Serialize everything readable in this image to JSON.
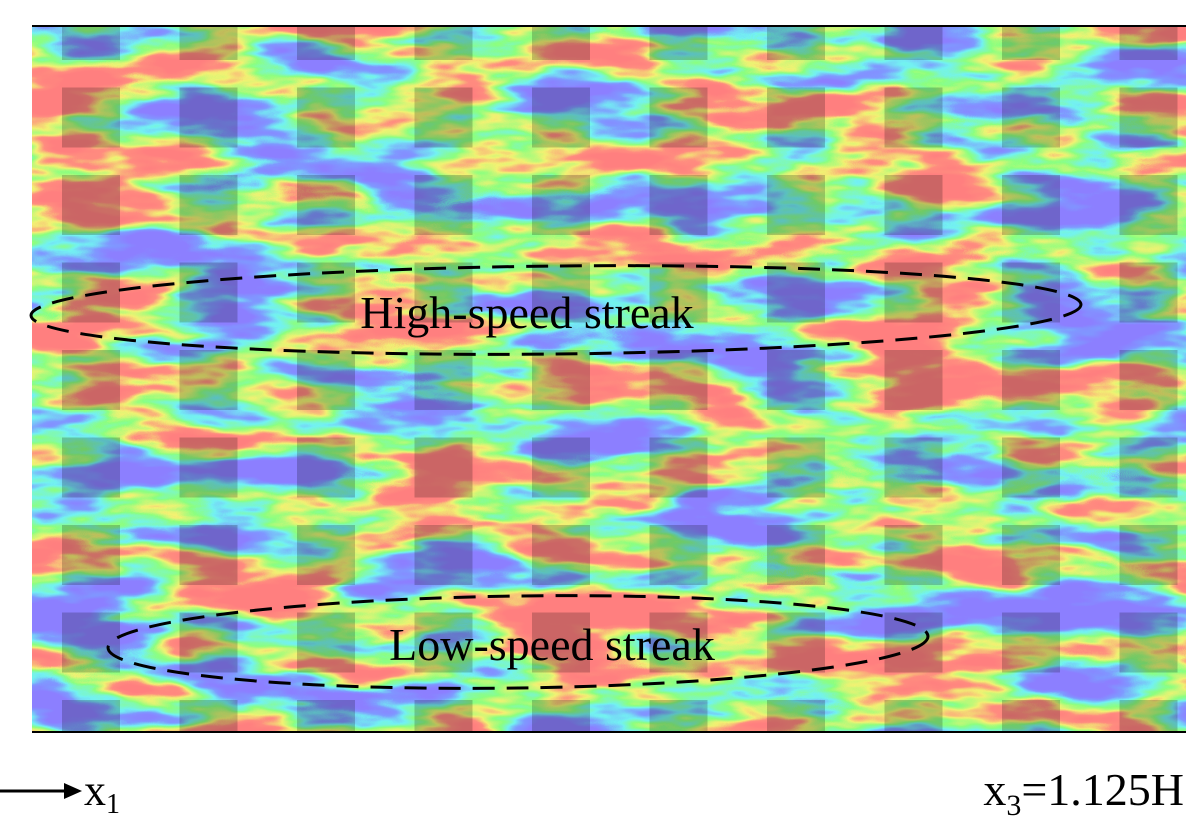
{
  "figure": {
    "annotations": [
      "High-speed streak",
      "Low-speed streak"
    ],
    "axis_label": {
      "base": "x",
      "sub": "1"
    },
    "plane_label": {
      "base": "x",
      "sub": "3",
      "rest": "=1.125H"
    }
  }
}
